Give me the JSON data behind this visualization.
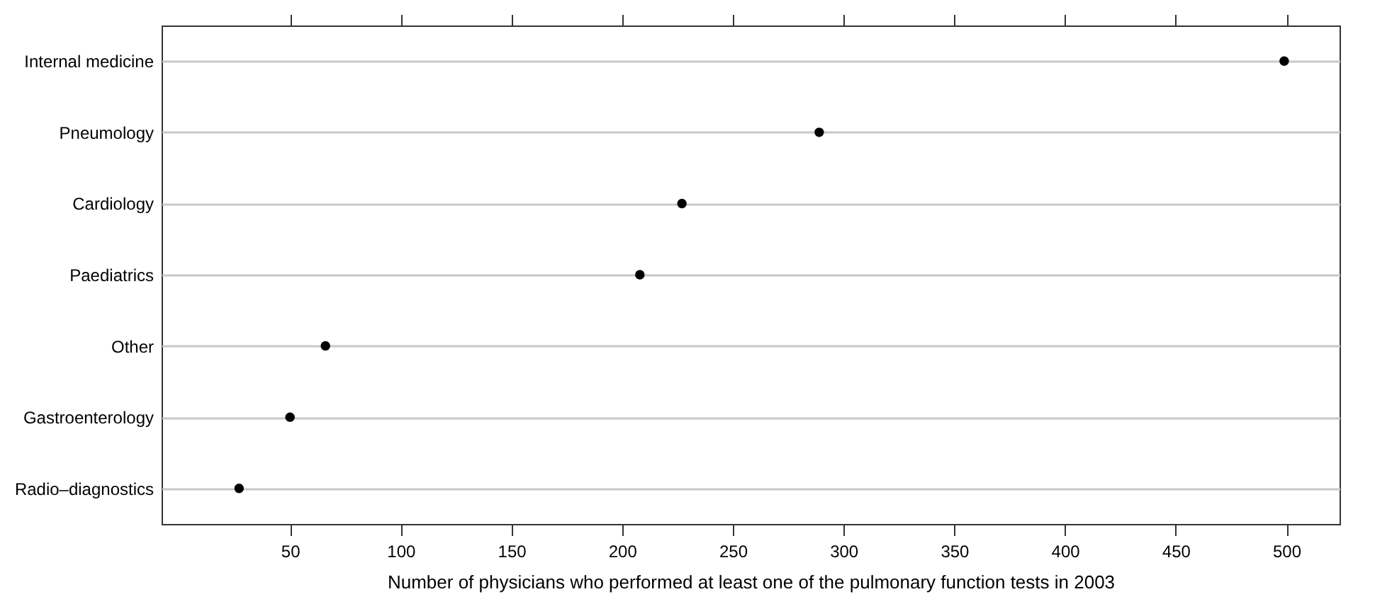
{
  "chart_data": {
    "type": "scatter",
    "categories": [
      "Internal medicine",
      "Pneumology",
      "Cardiology",
      "Paediatrics",
      "Other",
      "Gastroenterology",
      "Radio–diagnostics"
    ],
    "orientation": "horizontal",
    "values": [
      499,
      289,
      227,
      208,
      66,
      50,
      27
    ],
    "color": "#000000",
    "xlabel": "Number of physicians who performed at least one of the pulmonary function tests in 2003",
    "xlim": [
      -8,
      524
    ],
    "xticks": [
      50,
      100,
      150,
      200,
      250,
      300,
      350,
      400,
      450,
      500
    ],
    "grid": "y",
    "marker": "circle"
  }
}
